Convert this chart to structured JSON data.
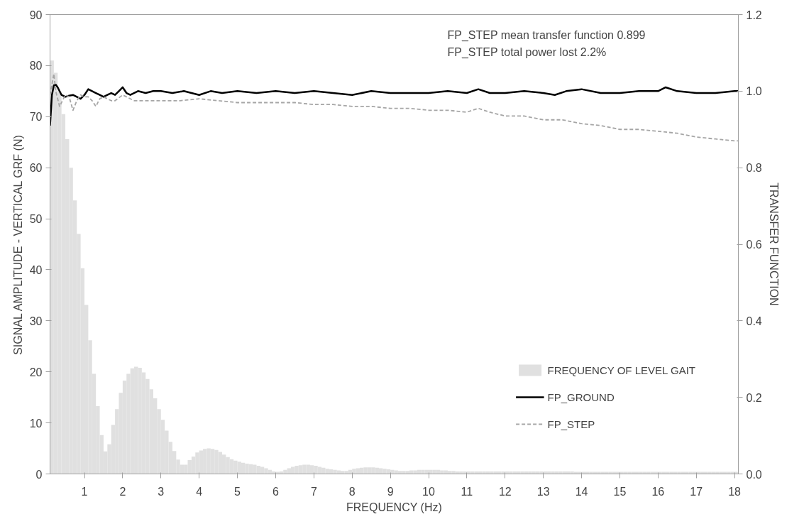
{
  "chart_data": {
    "type": "histogram",
    "xlabel": "FREQUENCY (Hz)",
    "ylabel": "SIGNAL AMPLITUDE - VERTICAL GRF (N)",
    "y2label": "TRANSFER FUNCTION",
    "annotations": [
      "FP_STEP mean transfer function    0.899",
      "FP_STEP total power lost    2.2%"
    ],
    "xlim": [
      0.1,
      18.1
    ],
    "xticks": [
      1,
      2,
      3,
      4,
      5,
      6,
      7,
      8,
      9,
      10,
      11,
      12,
      13,
      14,
      15,
      16,
      17,
      18
    ],
    "ylim": [
      0,
      90
    ],
    "yticks": [
      0,
      10,
      20,
      30,
      40,
      50,
      60,
      70,
      80,
      90
    ],
    "y2lim": [
      0,
      1.2
    ],
    "y2ticks": [
      {
        "value": 0,
        "label": "0.0"
      },
      {
        "value": 0.2,
        "label": "0.2"
      },
      {
        "value": 0.4,
        "label": "0.4"
      },
      {
        "value": 0.6,
        "label": "0.6"
      },
      {
        "value": 0.8,
        "label": "0.8"
      },
      {
        "value": 1,
        "label": "1.0"
      },
      {
        "value": 1.2,
        "label": "1.2"
      }
    ],
    "grid": false,
    "legend": "bottom right",
    "series": [
      {
        "name": "FREQUENCY OF LEVEL GAIT",
        "color": "#e0e0e0",
        "bins": [
          0.1,
          0.2,
          0.3,
          0.4,
          0.5,
          0.6,
          0.7,
          0.8,
          0.9,
          1.0,
          1.1,
          1.2,
          1.3,
          1.4,
          1.5,
          1.6,
          1.7,
          1.8,
          1.9,
          2.0,
          2.1,
          2.2,
          2.3,
          2.4,
          2.5,
          2.6,
          2.7,
          2.8,
          2.9,
          3.0,
          3.1,
          3.2,
          3.3,
          3.4,
          3.5,
          3.6,
          3.7,
          3.8,
          3.9,
          4.0,
          4.1,
          4.2,
          4.3,
          4.4,
          4.5,
          4.6,
          4.7,
          4.8,
          4.9,
          5.0,
          5.1,
          5.2,
          5.3,
          5.4,
          5.5,
          5.6,
          5.7,
          5.8,
          5.9,
          6.0,
          6.1,
          6.2,
          6.3,
          6.4,
          6.5,
          6.6,
          6.7,
          6.8,
          6.9,
          7.0,
          7.1,
          7.2,
          7.3,
          7.4,
          7.5,
          7.6,
          7.7,
          7.8,
          7.9,
          8.0,
          8.1,
          8.2,
          8.3,
          8.4,
          8.5,
          8.6,
          8.7,
          8.8,
          8.9,
          9.0,
          9.1,
          9.2,
          9.3,
          9.4,
          9.5,
          9.6,
          9.7,
          9.8,
          9.9,
          10.0,
          10.1,
          10.2,
          10.3,
          10.4,
          10.5,
          10.6,
          10.7,
          10.8,
          10.9,
          11.0,
          11.1,
          11.2,
          11.3,
          11.4,
          11.5,
          11.6,
          11.7,
          11.8,
          11.9,
          12.0,
          12.1,
          12.2,
          12.3,
          12.4,
          12.5,
          12.6,
          12.7,
          12.8,
          12.9,
          13.0,
          13.1,
          13.2,
          13.3,
          13.4,
          13.5,
          13.6,
          13.7,
          13.8,
          13.9,
          14.0,
          14.1,
          14.2,
          14.3,
          14.4,
          14.5,
          14.6,
          14.7,
          14.8,
          14.9,
          15.0,
          15.1,
          15.2,
          15.3,
          15.4,
          15.5,
          15.6,
          15.7,
          15.8,
          15.9,
          16.0,
          16.1,
          16.2,
          16.3,
          16.4,
          16.5,
          16.6,
          16.7,
          16.8,
          16.9,
          17.0,
          17.1,
          17.2,
          17.3,
          17.4,
          17.5,
          17.6,
          17.7,
          17.8,
          17.9,
          18.0,
          18.1
        ],
        "values": [
          81,
          78.6,
          75,
          70.5,
          65.6,
          60,
          53.6,
          47,
          40.3,
          33.1,
          26.2,
          19.6,
          13.3,
          7.6,
          4.4,
          5.8,
          9.6,
          12.7,
          15.9,
          18.3,
          19.6,
          20.7,
          21,
          20.8,
          19.9,
          18.6,
          16.6,
          14.8,
          12.7,
          10.6,
          8.5,
          6.3,
          4.5,
          2.8,
          1.8,
          1.8,
          2.7,
          3.4,
          4.2,
          4.6,
          4.9,
          5.0,
          4.9,
          4.7,
          4.3,
          3.8,
          3.3,
          2.9,
          2.6,
          2.4,
          2.2,
          2.0,
          1.9,
          1.8,
          1.6,
          1.4,
          1.1,
          0.8,
          0.5,
          0.4,
          0.5,
          0.8,
          1.1,
          1.4,
          1.6,
          1.7,
          1.8,
          1.8,
          1.7,
          1.6,
          1.4,
          1.2,
          1.0,
          0.9,
          0.8,
          0.7,
          0.6,
          0.6,
          0.8,
          1.0,
          1.1,
          1.2,
          1.3,
          1.3,
          1.3,
          1.2,
          1.1,
          1.0,
          0.9,
          0.8,
          0.7,
          0.6,
          0.6,
          0.6,
          0.7,
          0.7,
          0.8,
          0.8,
          0.8,
          0.8,
          0.8,
          0.8,
          0.7,
          0.7,
          0.6,
          0.6,
          0.5,
          0.5,
          0.5,
          0.5,
          0.5,
          0.5,
          0.5,
          0.5,
          0.5,
          0.5,
          0.5,
          0.5,
          0.5,
          0.5,
          0.5,
          0.5,
          0.5,
          0.5,
          0.5,
          0.5,
          0.5,
          0.5,
          0.5,
          0.5,
          0.5,
          0.5,
          0.5,
          0.5,
          0.5,
          0.5,
          0.5,
          0.4,
          0.4,
          0.4,
          0.4,
          0.4,
          0.4,
          0.4,
          0.4,
          0.4,
          0.4,
          0.4,
          0.4,
          0.4,
          0.4,
          0.4,
          0.4,
          0.4,
          0.4,
          0.4,
          0.4,
          0.4,
          0.4,
          0.4,
          0.4,
          0.4,
          0.4,
          0.4,
          0.4,
          0.4,
          0.4,
          0.4,
          0.4,
          0.4,
          0.4,
          0.4,
          0.4,
          0.4,
          0.4,
          0.4,
          0.4,
          0.4,
          0.4,
          0.4
        ]
      },
      {
        "type": "line",
        "name": "FP_GROUND",
        "axis": "y2",
        "color": "#000000",
        "line_style": "solid",
        "x": [
          0.1,
          0.15,
          0.2,
          0.25,
          0.3,
          0.4,
          0.5,
          0.6,
          0.7,
          0.8,
          0.9,
          1.0,
          1.1,
          1.2,
          1.3,
          1.4,
          1.5,
          1.6,
          1.7,
          1.8,
          1.9,
          2.0,
          2.1,
          2.2,
          2.4,
          2.6,
          2.8,
          3.0,
          3.3,
          3.6,
          4.0,
          4.3,
          4.6,
          5.0,
          5.5,
          6.0,
          6.5,
          7.0,
          7.5,
          8.0,
          8.5,
          9.0,
          9.5,
          10.0,
          10.5,
          11.0,
          11.3,
          11.6,
          12.0,
          12.5,
          13.0,
          13.3,
          13.6,
          14.0,
          14.5,
          15.0,
          15.5,
          16.0,
          16.2,
          16.5,
          17.0,
          17.5,
          18.0,
          18.1
        ],
        "values": [
          0.91,
          0.99,
          1.015,
          1.017,
          1.01,
          0.99,
          0.985,
          0.988,
          0.99,
          0.985,
          0.98,
          0.99,
          1.005,
          1.0,
          0.995,
          0.99,
          0.985,
          0.99,
          0.995,
          0.99,
          1.0,
          1.01,
          0.995,
          0.99,
          1.0,
          0.995,
          1.0,
          1.0,
          0.995,
          1.0,
          0.99,
          1.0,
          0.995,
          1.0,
          0.995,
          1.0,
          0.995,
          1.0,
          0.995,
          0.99,
          1.0,
          0.995,
          0.995,
          0.995,
          1.0,
          0.995,
          1.005,
          0.995,
          0.995,
          1.0,
          0.995,
          0.99,
          1.0,
          1.005,
          0.995,
          0.995,
          1.0,
          1.0,
          1.01,
          1.0,
          0.995,
          0.995,
          1.0,
          1.0
        ]
      },
      {
        "type": "line",
        "name": "FP_STEP",
        "axis": "y2",
        "color": "#a6a6a6",
        "line_style": "dashed",
        "x": [
          0.1,
          0.2,
          0.25,
          0.35,
          0.5,
          0.6,
          0.7,
          0.8,
          0.9,
          1.0,
          1.1,
          1.2,
          1.3,
          1.4,
          1.5,
          1.7,
          1.8,
          2.0,
          2.3,
          2.6,
          3.0,
          3.5,
          4.0,
          4.5,
          5.0,
          5.5,
          6.0,
          6.5,
          7.0,
          7.5,
          8.0,
          8.5,
          9.0,
          9.5,
          10.0,
          10.5,
          11.0,
          11.3,
          11.6,
          12.0,
          12.5,
          13.0,
          13.5,
          14.0,
          14.5,
          15.0,
          15.5,
          16.0,
          16.5,
          17.0,
          17.5,
          18.0,
          18.1
        ],
        "values": [
          0.99,
          1.045,
          1.0,
          0.96,
          0.99,
          0.985,
          0.95,
          0.975,
          0.99,
          0.985,
          0.985,
          0.975,
          0.96,
          0.98,
          0.985,
          0.975,
          0.975,
          0.99,
          0.975,
          0.975,
          0.975,
          0.975,
          0.98,
          0.975,
          0.97,
          0.97,
          0.97,
          0.97,
          0.965,
          0.965,
          0.96,
          0.96,
          0.955,
          0.955,
          0.95,
          0.95,
          0.945,
          0.955,
          0.945,
          0.935,
          0.935,
          0.925,
          0.925,
          0.915,
          0.91,
          0.9,
          0.9,
          0.895,
          0.89,
          0.88,
          0.875,
          0.87,
          0.87
        ]
      }
    ]
  }
}
